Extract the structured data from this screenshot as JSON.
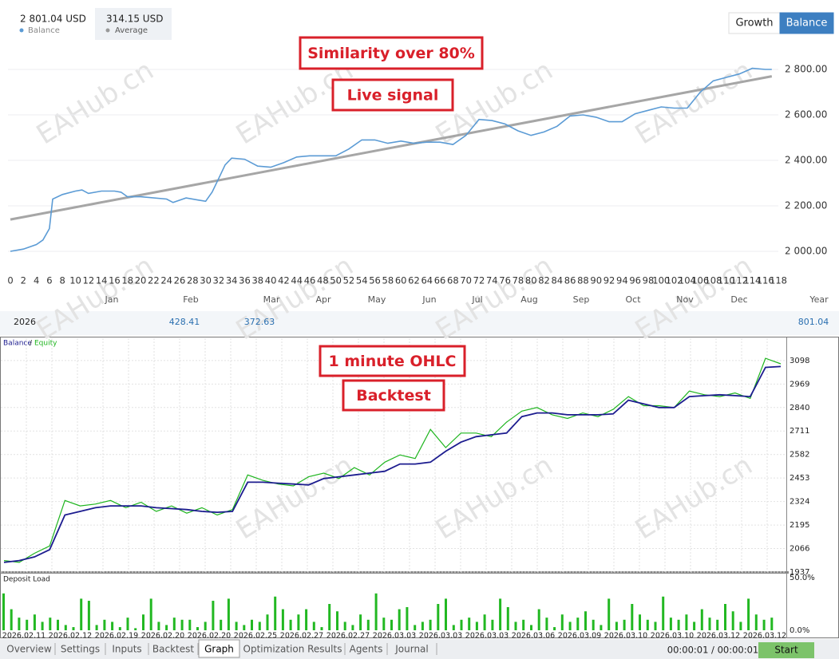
{
  "header": {
    "balance": {
      "value": "2 801.04 USD",
      "label": "Balance"
    },
    "average": {
      "value": "314.15 USD",
      "label": "Average"
    },
    "buttons": [
      "Growth",
      "Balance"
    ],
    "active_button": 1
  },
  "annotations": {
    "live": [
      "Similarity over 80%",
      "Live signal"
    ],
    "backtest": [
      "1 minute OHLC",
      "Backtest"
    ]
  },
  "watermark": "EAHub.cn",
  "live_chart": {
    "type": "line",
    "color": "#5b9bd5",
    "x": [
      0,
      2,
      4,
      5,
      6,
      6.5,
      8,
      10,
      11,
      12,
      14,
      16,
      17,
      18,
      20,
      24,
      25,
      27,
      29,
      30,
      31,
      32,
      33,
      34,
      36,
      38,
      40,
      42,
      44,
      46,
      50,
      52,
      54,
      56,
      58,
      60,
      62,
      64,
      66,
      68,
      70,
      72,
      74,
      76,
      78,
      80,
      82,
      84,
      86,
      88,
      90,
      92,
      94,
      96,
      98,
      100,
      102,
      104,
      106,
      108,
      110,
      112,
      114,
      116,
      117
    ],
    "values": [
      2000,
      2010,
      2030,
      2050,
      2100,
      2230,
      2250,
      2265,
      2270,
      2255,
      2265,
      2265,
      2260,
      2240,
      2240,
      2230,
      2215,
      2235,
      2225,
      2220,
      2260,
      2320,
      2380,
      2410,
      2405,
      2375,
      2370,
      2390,
      2415,
      2420,
      2420,
      2450,
      2490,
      2490,
      2475,
      2485,
      2475,
      2480,
      2480,
      2470,
      2510,
      2580,
      2575,
      2560,
      2530,
      2510,
      2525,
      2550,
      2595,
      2600,
      2590,
      2570,
      2570,
      2605,
      2620,
      2635,
      2630,
      2630,
      2700,
      2750,
      2765,
      2780,
      2805,
      2800,
      2800
    ],
    "trend": {
      "x": [
        0,
        117
      ],
      "values": [
        2140,
        2770
      ],
      "color": "#a6a6a6"
    },
    "xlim": [
      0,
      118
    ],
    "xticks": [
      0,
      2,
      4,
      6,
      8,
      10,
      12,
      14,
      16,
      18,
      20,
      22,
      24,
      26,
      28,
      30,
      32,
      34,
      36,
      38,
      40,
      42,
      44,
      46,
      48,
      50,
      52,
      54,
      56,
      58,
      60,
      62,
      64,
      66,
      68,
      70,
      72,
      74,
      76,
      78,
      80,
      82,
      84,
      86,
      88,
      90,
      92,
      94,
      96,
      98,
      100,
      102,
      104,
      106,
      108,
      110,
      112,
      114,
      116,
      118
    ],
    "ylim": [
      1950,
      2880
    ],
    "yticks": [
      {
        "value": 2800,
        "label": "2 800.00"
      },
      {
        "value": 2600,
        "label": "2 600.00"
      },
      {
        "value": 2400,
        "label": "2 400.00"
      },
      {
        "value": 2200,
        "label": "2 200.00"
      },
      {
        "value": 2000,
        "label": "2 000.00"
      }
    ],
    "grid": true
  },
  "year_table": {
    "columns": [
      "Jan",
      "Feb",
      "Mar",
      "Apr",
      "May",
      "Jun",
      "Jul",
      "Aug",
      "Sep",
      "Oct",
      "Nov",
      "Dec",
      "Year"
    ],
    "row": {
      "label": "2026",
      "cells": [
        null,
        "428.41",
        "372.63",
        null,
        null,
        null,
        null,
        null,
        null,
        null,
        null,
        null,
        "801.04"
      ]
    }
  },
  "backtest_chart": {
    "type": "line",
    "legend_separator": "/",
    "series": [
      {
        "name": "Balance",
        "color": "#1c1c8f",
        "values": [
          1990,
          2000,
          2020,
          2060,
          2250,
          2270,
          2290,
          2300,
          2300,
          2300,
          2290,
          2285,
          2280,
          2270,
          2265,
          2270,
          2430,
          2430,
          2425,
          2420,
          2415,
          2450,
          2460,
          2470,
          2480,
          2490,
          2530,
          2530,
          2540,
          2600,
          2650,
          2680,
          2690,
          2700,
          2790,
          2810,
          2810,
          2800,
          2800,
          2800,
          2805,
          2880,
          2860,
          2840,
          2840,
          2900,
          2905,
          2910,
          2905,
          2900,
          3060,
          3065
        ]
      },
      {
        "name": "Equity",
        "color": "#1fb51f",
        "values": [
          2000,
          1990,
          2040,
          2080,
          2330,
          2300,
          2310,
          2330,
          2290,
          2320,
          2270,
          2300,
          2260,
          2290,
          2250,
          2280,
          2470,
          2440,
          2420,
          2410,
          2460,
          2480,
          2450,
          2510,
          2470,
          2540,
          2580,
          2560,
          2720,
          2620,
          2700,
          2700,
          2680,
          2760,
          2820,
          2840,
          2800,
          2780,
          2810,
          2790,
          2830,
          2900,
          2850,
          2850,
          2840,
          2930,
          2910,
          2900,
          2920,
          2890,
          3110,
          3080
        ]
      }
    ],
    "ylim": [
      1937,
      3220
    ],
    "yticks": [
      3098,
      2969,
      2840,
      2711,
      2582,
      2453,
      2324,
      2195,
      2066,
      1937
    ],
    "grid": true,
    "categories": [
      "2026.02.11",
      "2026.02.12",
      "2026.02.19",
      "2026.02.20",
      "2026.02.20",
      "2026.02.25",
      "2026.02.27",
      "2026.02.27",
      "2026.03.03",
      "2026.03.03",
      "2026.03.03",
      "2026.03.06",
      "2026.03.09",
      "2026.03.10",
      "2026.03.10",
      "2026.03.12",
      "2026.03.12"
    ]
  },
  "deposit_load": {
    "type": "bar",
    "title": "Deposit Load",
    "color": "#22b822",
    "ylim": [
      0,
      50
    ],
    "yticks": [
      {
        "value": 50,
        "label": "50.0%"
      },
      {
        "value": 0,
        "label": "0.0%"
      }
    ],
    "values": [
      35,
      20,
      12,
      10,
      15,
      8,
      12,
      10,
      5,
      3,
      30,
      28,
      5,
      10,
      8,
      3,
      12,
      2,
      15,
      30,
      8,
      5,
      12,
      10,
      10,
      3,
      8,
      28,
      10,
      30,
      8,
      5,
      10,
      8,
      15,
      32,
      20,
      10,
      15,
      20,
      8,
      3,
      25,
      18,
      8,
      5,
      15,
      10,
      35,
      12,
      10,
      20,
      22,
      5,
      8,
      10,
      25,
      30,
      5,
      10,
      12,
      8,
      15,
      10,
      30,
      22,
      8,
      10,
      5,
      20,
      12,
      3,
      15,
      8,
      12,
      18,
      10,
      5,
      30,
      8,
      10,
      25,
      15,
      10,
      8,
      32,
      12,
      10,
      15,
      8,
      20,
      12,
      10,
      25,
      18,
      8,
      30,
      15,
      10,
      12
    ]
  },
  "tabs": [
    "Overview",
    "Settings",
    "Inputs",
    "Backtest",
    "Graph",
    "Optimization Results",
    "Agents",
    "Journal"
  ],
  "active_tab": 4,
  "timer": "00:00:01 / 00:00:01",
  "start": "Start"
}
